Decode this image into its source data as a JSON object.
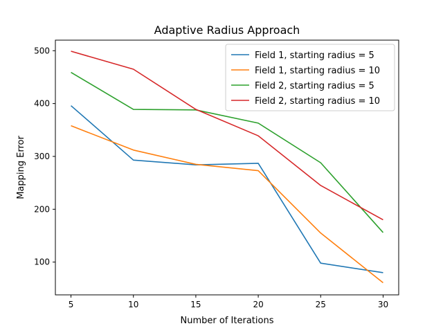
{
  "chart_data": {
    "type": "line",
    "title": "Adaptive Radius Approach",
    "xlabel": "Number of Iterations",
    "ylabel": "Mapping Error",
    "x": [
      5,
      10,
      15,
      20,
      25,
      30
    ],
    "xticks": [
      "5",
      "10",
      "15",
      "20",
      "25",
      "30"
    ],
    "yticks": [
      "100",
      "200",
      "300",
      "400",
      "500"
    ],
    "xlim": [
      3.75,
      31.25
    ],
    "ylim": [
      38,
      520
    ],
    "grid": false,
    "legend_position": "top-right",
    "series": [
      {
        "name": "Field 1, starting radius = 5",
        "color": "#1f77b4",
        "values": [
          396,
          293,
          284,
          287,
          98,
          80
        ]
      },
      {
        "name": "Field 1, starting radius = 10",
        "color": "#ff7f0e",
        "values": [
          358,
          312,
          285,
          273,
          155,
          61
        ]
      },
      {
        "name": "Field 2, starting radius = 5",
        "color": "#2ca02c",
        "values": [
          459,
          389,
          388,
          363,
          288,
          156
        ]
      },
      {
        "name": "Field 2, starting radius = 10",
        "color": "#d62728",
        "values": [
          499,
          465,
          389,
          339,
          245,
          180
        ]
      }
    ]
  }
}
